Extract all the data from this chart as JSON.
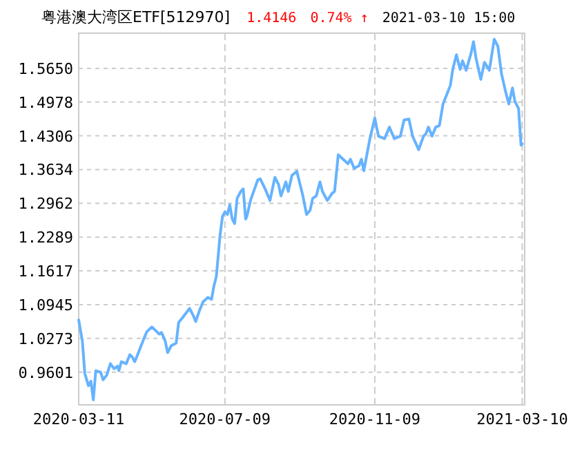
{
  "chart_data": {
    "type": "line",
    "title": "粤港澳大湾区ETF[512970]",
    "annotations": [
      "1.4146",
      "0.74% ↑",
      "2021-03-10 15:00"
    ],
    "x": [
      "2020-03-11",
      "2020-03-14",
      "2020-03-16",
      "2020-03-19",
      "2020-03-21",
      "2020-03-23",
      "2020-03-25",
      "2020-03-29",
      "2020-03-31",
      "2020-04-03",
      "2020-04-06",
      "2020-04-09",
      "2020-04-12",
      "2020-04-13",
      "2020-04-15",
      "2020-04-19",
      "2020-04-22",
      "2020-04-24",
      "2020-04-26",
      "2020-04-29",
      "2020-05-04",
      "2020-05-06",
      "2020-05-10",
      "2020-05-14",
      "2020-05-16",
      "2020-05-18",
      "2020-05-21",
      "2020-05-23",
      "2020-05-26",
      "2020-05-30",
      "2020-06-01",
      "2020-06-04",
      "2020-06-10",
      "2020-06-13",
      "2020-06-15",
      "2020-06-18",
      "2020-06-21",
      "2020-06-25",
      "2020-06-28",
      "2020-06-30",
      "2020-07-02",
      "2020-07-05",
      "2020-07-07",
      "2020-07-09",
      "2020-07-11",
      "2020-07-13",
      "2020-07-15",
      "2020-07-17",
      "2020-07-19",
      "2020-07-22",
      "2020-07-24",
      "2020-07-26",
      "2020-07-27",
      "2020-07-30",
      "2020-08-01",
      "2020-08-05",
      "2020-08-07",
      "2020-08-11",
      "2020-08-15",
      "2020-08-19",
      "2020-08-22",
      "2020-08-24",
      "2020-08-28",
      "2020-08-30",
      "2020-09-02",
      "2020-09-06",
      "2020-09-11",
      "2020-09-14",
      "2020-09-17",
      "2020-09-19",
      "2020-09-22",
      "2020-09-25",
      "2020-09-27",
      "2020-10-01",
      "2020-10-05",
      "2020-10-07",
      "2020-10-10",
      "2020-10-14",
      "2020-10-18",
      "2020-10-20",
      "2020-10-23",
      "2020-10-27",
      "2020-10-29",
      "2020-10-31",
      "2020-11-05",
      "2020-11-09",
      "2020-11-12",
      "2020-11-17",
      "2020-11-21",
      "2020-11-25",
      "2020-11-30",
      "2020-12-03",
      "2020-12-07",
      "2020-12-10",
      "2020-12-15",
      "2020-12-19",
      "2020-12-21",
      "2020-12-23",
      "2020-12-26",
      "2020-12-29",
      "2021-01-01",
      "2021-01-04",
      "2021-01-10",
      "2021-01-12",
      "2021-01-15",
      "2021-01-18",
      "2021-01-20",
      "2021-01-23",
      "2021-01-27",
      "2021-01-29",
      "2021-01-31",
      "2021-02-04",
      "2021-02-07",
      "2021-02-11",
      "2021-02-15",
      "2021-02-18",
      "2021-02-21",
      "2021-02-24",
      "2021-02-27",
      "2021-03-02",
      "2021-03-04",
      "2021-03-07",
      "2021-03-09",
      "2021-03-10"
    ],
    "series": [
      {
        "color": "#66b3ff",
        "values": [
          1.064,
          1.022,
          0.958,
          0.933,
          0.942,
          0.905,
          0.963,
          0.96,
          0.945,
          0.954,
          0.977,
          0.967,
          0.972,
          0.963,
          0.981,
          0.977,
          0.995,
          0.99,
          0.981,
          0.999,
          1.03,
          1.041,
          1.05,
          1.041,
          1.036,
          1.039,
          1.022,
          0.999,
          1.013,
          1.018,
          1.059,
          1.068,
          1.087,
          1.073,
          1.061,
          1.082,
          1.1,
          1.109,
          1.105,
          1.132,
          1.151,
          1.233,
          1.27,
          1.279,
          1.274,
          1.293,
          1.265,
          1.256,
          1.306,
          1.32,
          1.325,
          1.265,
          1.27,
          1.302,
          1.316,
          1.343,
          1.345,
          1.325,
          1.302,
          1.348,
          1.334,
          1.311,
          1.339,
          1.32,
          1.352,
          1.36,
          1.311,
          1.274,
          1.283,
          1.306,
          1.311,
          1.339,
          1.32,
          1.302,
          1.316,
          1.32,
          1.393,
          1.384,
          1.375,
          1.384,
          1.366,
          1.371,
          1.384,
          1.361,
          1.425,
          1.466,
          1.43,
          1.425,
          1.448,
          1.425,
          1.43,
          1.462,
          1.464,
          1.43,
          1.403,
          1.43,
          1.435,
          1.448,
          1.43,
          1.448,
          1.451,
          1.494,
          1.531,
          1.563,
          1.592,
          1.563,
          1.58,
          1.561,
          1.595,
          1.618,
          1.586,
          1.543,
          1.577,
          1.561,
          1.623,
          1.609,
          1.554,
          1.522,
          1.494,
          1.526,
          1.499,
          1.485,
          1.412,
          1.4146
        ]
      }
    ],
    "xlim": [
      "2020-03-11",
      "2021-03-12"
    ],
    "xticks": [
      "2020-03-11",
      "2020-07-09",
      "2020-11-09",
      "2021-03-10"
    ],
    "ylim": [
      0.895,
      1.635
    ],
    "yticks": [
      {
        "value": 0.9601,
        "label": "0.9601"
      },
      {
        "value": 1.0273,
        "label": "1.0273"
      },
      {
        "value": 1.0945,
        "label": "1.0945"
      },
      {
        "value": 1.1617,
        "label": "1.1617"
      },
      {
        "value": 1.2289,
        "label": "1.2289"
      },
      {
        "value": 1.2962,
        "label": "1.2962"
      },
      {
        "value": 1.3634,
        "label": "1.3634"
      },
      {
        "value": 1.4306,
        "label": "1.4306"
      },
      {
        "value": 1.4978,
        "label": "1.4978"
      },
      {
        "value": 1.565,
        "label": "1.5650"
      }
    ],
    "grid": true
  }
}
